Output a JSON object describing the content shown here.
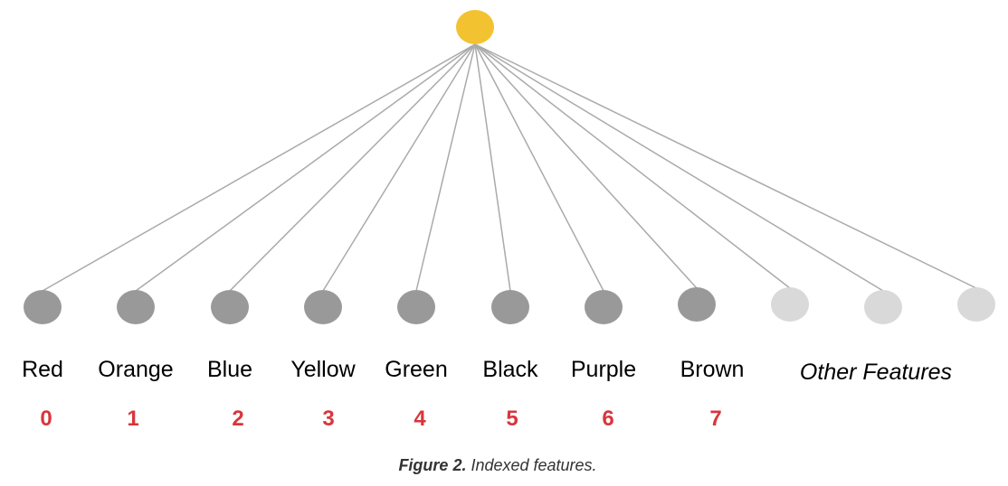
{
  "colors": {
    "root_node": "#F2C230",
    "active_node": "#999999",
    "inactive_node": "#D9D9D9",
    "edge": "#AAAAAA",
    "index_text": "#D9353C",
    "label_text": "#000000"
  },
  "features": [
    {
      "label": "Red",
      "index": "0",
      "active": true
    },
    {
      "label": "Orange",
      "index": "1",
      "active": true
    },
    {
      "label": "Blue",
      "index": "2",
      "active": true
    },
    {
      "label": "Yellow",
      "index": "3",
      "active": true
    },
    {
      "label": "Green",
      "index": "4",
      "active": true
    },
    {
      "label": "Black",
      "index": "5",
      "active": true
    },
    {
      "label": "Purple",
      "index": "6",
      "active": true
    },
    {
      "label": "Brown",
      "index": "7",
      "active": true
    },
    {
      "label": "",
      "index": "",
      "active": false
    },
    {
      "label": "",
      "index": "",
      "active": false
    },
    {
      "label": "",
      "index": "",
      "active": false
    }
  ],
  "other_features_label": "Other Features",
  "caption": {
    "prefix": "Figure 2.",
    "text": " Indexed features."
  }
}
